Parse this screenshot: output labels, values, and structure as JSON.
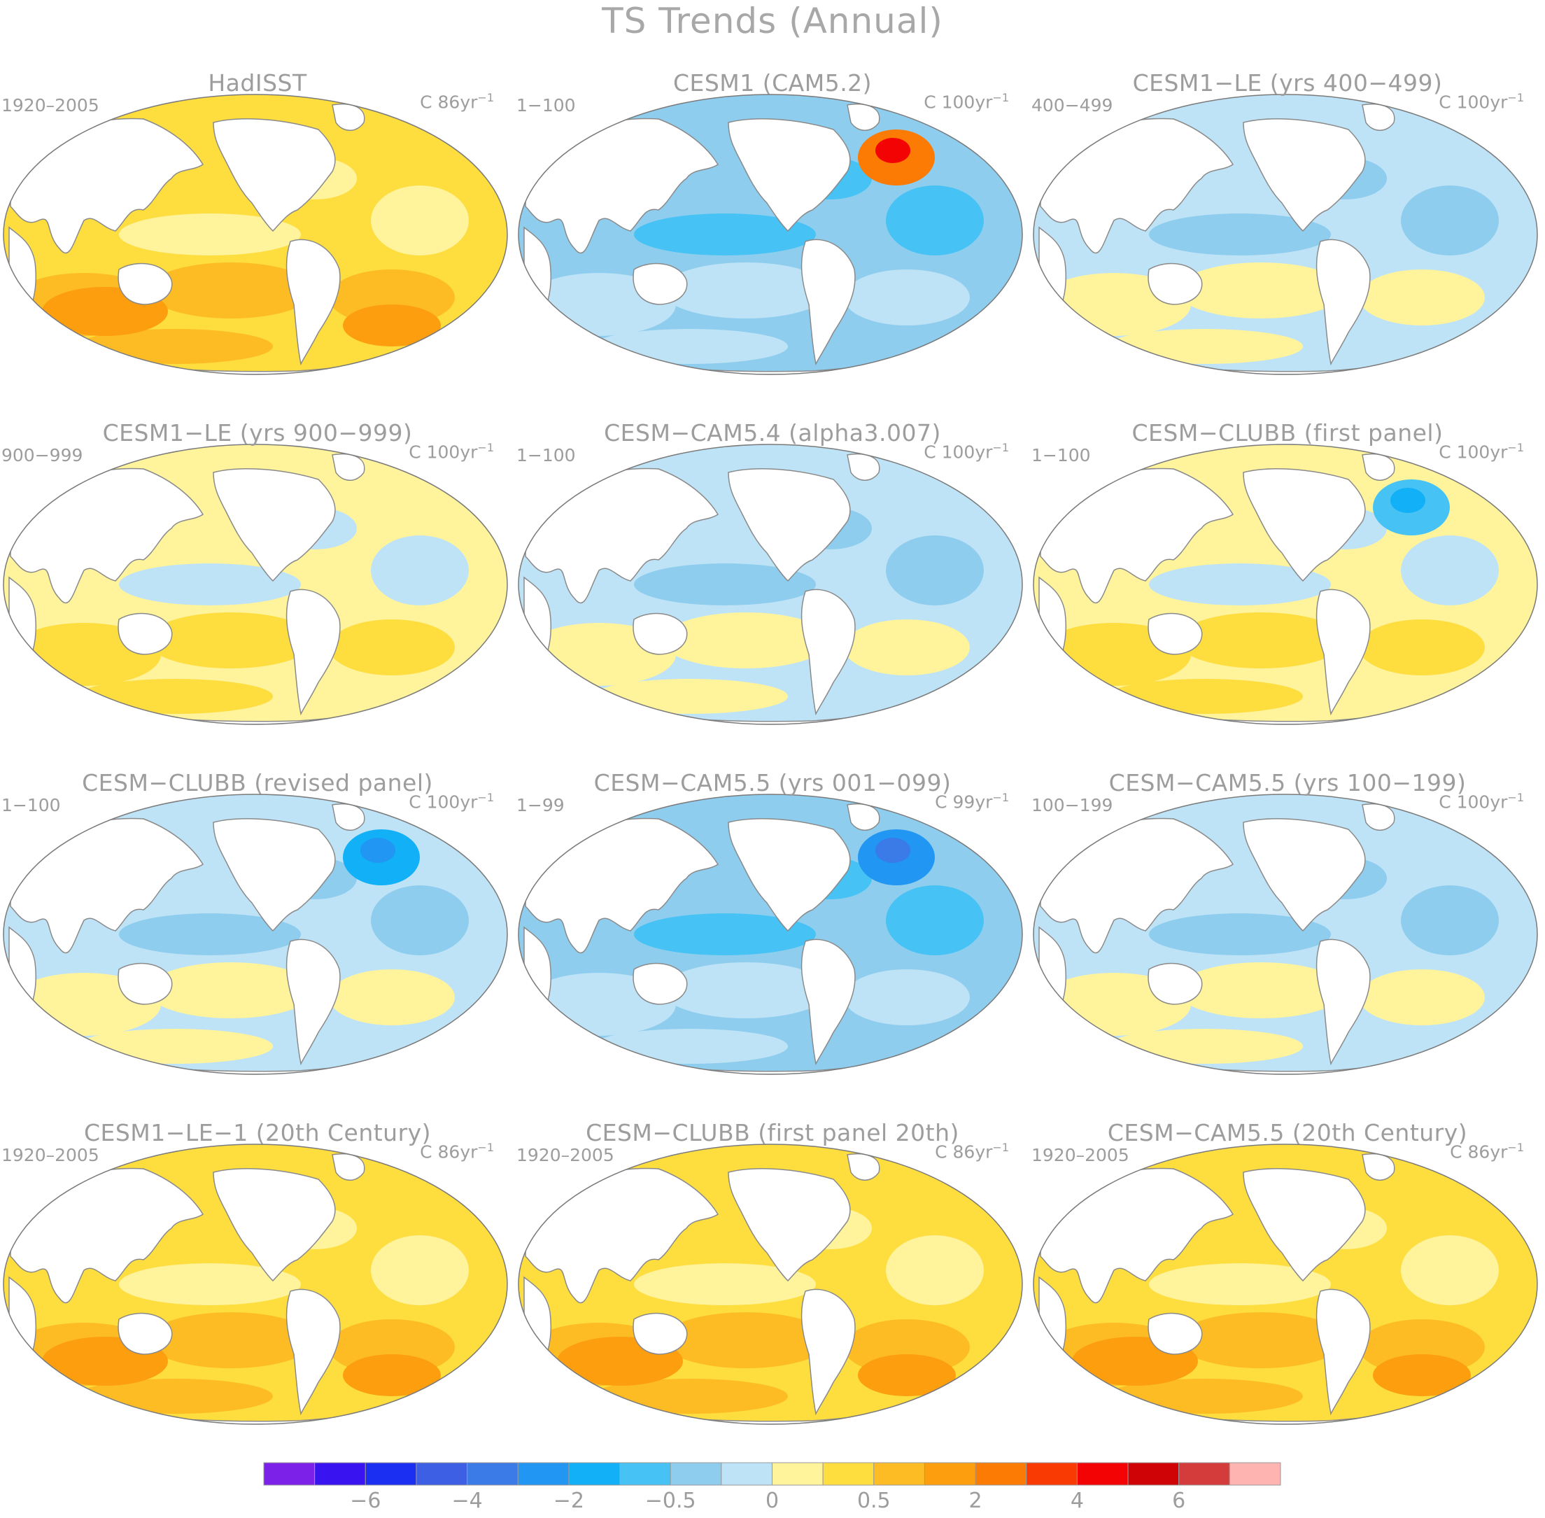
{
  "title": "TS Trends (Annual)",
  "colors": {
    "ocean_bg": "#fff39c",
    "land": "#ffffff",
    "coast": "#8a8a8a",
    "levels": [
      "#7c22e8",
      "#3a14f0",
      "#1a2ff2",
      "#3d5fe4",
      "#3a7be8",
      "#2196f3",
      "#12b0f6",
      "#46c3f4",
      "#8fcdee",
      "#bfe3f6",
      "#fff39c",
      "#fedd3f",
      "#fdbb24",
      "#fd9e0e",
      "#fb7b05",
      "#f93a03",
      "#f40304",
      "#cf0206",
      "#d43c3c",
      "#feb4b0"
    ],
    "levels_semantic": [
      "<-6",
      "-6:-5",
      "-5:-4",
      "-4:-3",
      "-3:-2.5",
      "-2.5:-2",
      "-2:-1.5",
      "-1.5:-1",
      "-1:-0.5",
      "-0.5:0",
      "0:0.5",
      "0.5:1",
      "1:1.5",
      "1.5:2",
      "2:2.5",
      "2.5:3",
      "3:4",
      "4:5",
      "5:6",
      ">6"
    ]
  },
  "colorbar": {
    "tick_labels": [
      {
        "label": "−6",
        "level_index": 1
      },
      {
        "label": "−4",
        "level_index": 3
      },
      {
        "label": "−2",
        "level_index": 5
      },
      {
        "label": "−0.5",
        "level_index": 7
      },
      {
        "label": "0",
        "level_index": 9
      },
      {
        "label": "0.5",
        "level_index": 11
      },
      {
        "label": "2",
        "level_index": 13
      },
      {
        "label": "4",
        "level_index": 15
      },
      {
        "label": "6",
        "level_index": 17
      }
    ]
  },
  "chart_data": [
    {
      "type": "heatmap",
      "title": "HadISST",
      "period": "1920–2005",
      "units_label": "C 86yr",
      "units_exp": "−1",
      "dominant_level": "0.5:1",
      "pattern": "warming"
    },
    {
      "type": "heatmap",
      "title": "CESM1 (CAM5.2)",
      "period": "1−100",
      "units_label": "C 100yr",
      "units_exp": "−1",
      "dominant_level": "-1:-0.5",
      "pattern": "cooling, warm North Atlantic"
    },
    {
      "type": "heatmap",
      "title": "CESM1−LE (yrs 400−499)",
      "period": "400−499",
      "units_label": "C 100yr",
      "units_exp": "−1",
      "dominant_level": "-0.5:0",
      "pattern": "mixed"
    },
    {
      "type": "heatmap",
      "title": "CESM1−LE (yrs 900−999)",
      "period": "900−999",
      "units_label": "C 100yr",
      "units_exp": "−1",
      "dominant_level": "0:0.5",
      "pattern": "slight warming"
    },
    {
      "type": "heatmap",
      "title": "CESM−CAM5.4 (alpha3.007)",
      "period": "1−100",
      "units_label": "C 100yr",
      "units_exp": "−1",
      "dominant_level": "-0.5:0",
      "pattern": "cooling"
    },
    {
      "type": "heatmap",
      "title": "CESM−CLUBB (first panel)",
      "period": "1−100",
      "units_label": "C 100yr",
      "units_exp": "−1",
      "dominant_level": "0:0.5",
      "pattern": "mixed, cool North Atlantic"
    },
    {
      "type": "heatmap",
      "title": "CESM−CLUBB (revised panel)",
      "period": "1−100",
      "units_label": "C 100yr",
      "units_exp": "−1",
      "dominant_level": "-0.5:0",
      "pattern": "cooling, strong North Atlantic cooling"
    },
    {
      "type": "heatmap",
      "title": "CESM−CAM5.5 (yrs 001−099)",
      "period": "1−99",
      "units_label": "C 99yr",
      "units_exp": "−1",
      "dominant_level": "-1:-0.5",
      "pattern": "cooling, strong North Atlantic cooling"
    },
    {
      "type": "heatmap",
      "title": "CESM−CAM5.5 (yrs 100−199)",
      "period": "100−199",
      "units_label": "C 100yr",
      "units_exp": "−1",
      "dominant_level": "-0.5:0",
      "pattern": "mixed"
    },
    {
      "type": "heatmap",
      "title": "CESM1−LE−1 (20th Century)",
      "period": "1920–2005",
      "units_label": "C 86yr",
      "units_exp": "−1",
      "dominant_level": "0.5:1",
      "pattern": "warming"
    },
    {
      "type": "heatmap",
      "title": "CESM−CLUBB (first panel 20th)",
      "period": "1920–2005",
      "units_label": "C 86yr",
      "units_exp": "−1",
      "dominant_level": "0.5:1",
      "pattern": "warming"
    },
    {
      "type": "heatmap",
      "title": "CESM−CAM5.5 (20th Century)",
      "period": "1920–2005",
      "units_label": "C 86yr",
      "units_exp": "−1",
      "dominant_level": "0.5:1",
      "pattern": "warming"
    }
  ]
}
